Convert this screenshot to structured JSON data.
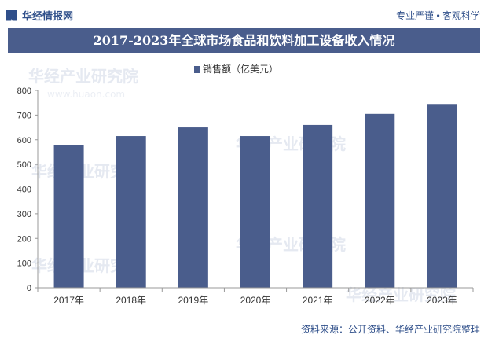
{
  "header": {
    "logo_text": "华经情报网",
    "tagline": "专业严谨 • 客观科学"
  },
  "title": "2017-2023年全球市场食品和饮料加工设备收入情况",
  "footer": {
    "source": "资料来源：公开资料、华经产业研究院整理"
  },
  "colors": {
    "bar": "#4a5d8c",
    "title_bg": "#4a5d8c",
    "text": "#333333"
  },
  "chart_data": {
    "type": "bar",
    "title": "2017-2023年全球市场食品和饮料加工设备收入情况",
    "categories": [
      "2017年",
      "2018年",
      "2019年",
      "2020年",
      "2021年",
      "2022年",
      "2023年"
    ],
    "series": [
      {
        "name": "销售额（亿美元）",
        "values": [
          580,
          615,
          650,
          615,
          660,
          705,
          745
        ]
      }
    ],
    "xlabel": "",
    "ylabel": "",
    "ylim": [
      0,
      800
    ],
    "yticks": [
      0,
      100,
      200,
      300,
      400,
      500,
      600,
      700,
      800
    ],
    "legend_position": "top-center",
    "grid": false
  }
}
